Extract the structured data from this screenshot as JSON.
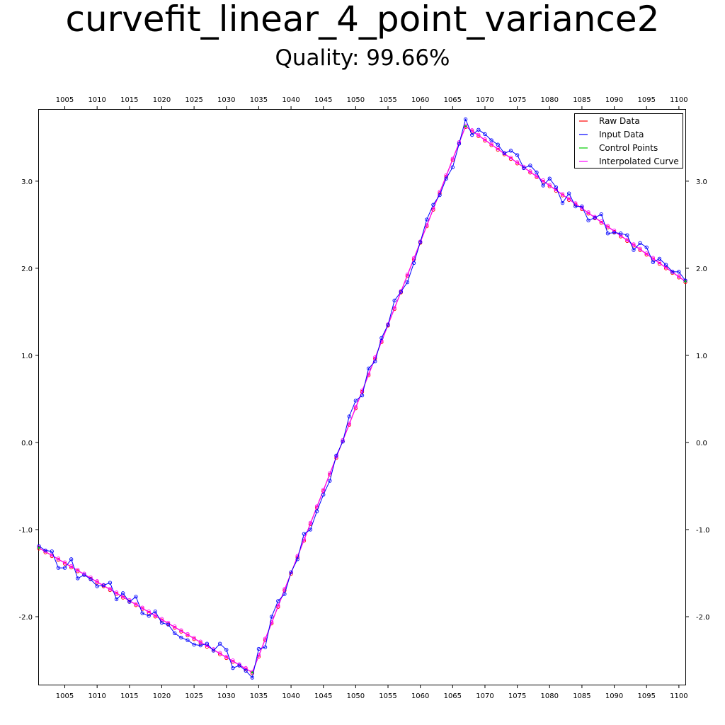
{
  "title": "curvefit_linear_4_point_variance2",
  "subtitle": "Quality: 99.66%",
  "chart_data": {
    "type": "line",
    "xlim": [
      1001,
      1101
    ],
    "ylim": [
      -2.78,
      3.82
    ],
    "x_ticks": [
      1005,
      1010,
      1015,
      1020,
      1025,
      1030,
      1035,
      1040,
      1045,
      1050,
      1055,
      1060,
      1065,
      1070,
      1075,
      1080,
      1085,
      1090,
      1095,
      1100
    ],
    "x_tick_labels": [
      "1005",
      "1010",
      "1015",
      "1020",
      "1025",
      "1030",
      "1035",
      "1040",
      "1045",
      "1050",
      "1055",
      "1060",
      "1065",
      "1070",
      "1075",
      "1080",
      "1085",
      "1090",
      "1095",
      "1100"
    ],
    "y_ticks": [
      -2.0,
      -1.0,
      0.0,
      1.0,
      2.0,
      3.0
    ],
    "y_tick_labels": [
      "-2.0",
      "-1.0",
      "0.0",
      "1.0",
      "2.0",
      "3.0"
    ],
    "grid": false,
    "legend_position": "top-right",
    "legend": [
      {
        "label": "Raw Data",
        "color": "#ff0000"
      },
      {
        "label": "Input Data",
        "color": "#0000ff"
      },
      {
        "label": "Control Points",
        "color": "#00cc00"
      },
      {
        "label": "Interpolated Curve",
        "color": "#ff00ff"
      }
    ],
    "raw_data": {
      "color": "#ff0000",
      "x": [
        1001,
        1034,
        1067,
        1101
      ],
      "y": [
        -1.21,
        -2.64,
        3.63,
        1.85
      ]
    },
    "input_data": {
      "color": "#0000ff",
      "x": [
        1001,
        1002,
        1003,
        1004,
        1005,
        1006,
        1007,
        1008,
        1009,
        1010,
        1011,
        1012,
        1013,
        1014,
        1015,
        1016,
        1017,
        1018,
        1019,
        1020,
        1021,
        1022,
        1023,
        1024,
        1025,
        1026,
        1027,
        1028,
        1029,
        1030,
        1031,
        1032,
        1033,
        1034,
        1035,
        1036,
        1037,
        1038,
        1039,
        1040,
        1041,
        1042,
        1043,
        1044,
        1045,
        1046,
        1047,
        1048,
        1049,
        1050,
        1051,
        1052,
        1053,
        1054,
        1055,
        1056,
        1057,
        1058,
        1059,
        1060,
        1061,
        1062,
        1063,
        1064,
        1065,
        1066,
        1067,
        1068,
        1069,
        1070,
        1071,
        1072,
        1073,
        1074,
        1075,
        1076,
        1077,
        1078,
        1079,
        1080,
        1081,
        1082,
        1083,
        1084,
        1085,
        1086,
        1087,
        1088,
        1089,
        1090,
        1091,
        1092,
        1093,
        1094,
        1095,
        1096,
        1097,
        1098,
        1099,
        1100,
        1101
      ],
      "y": [
        -1.19,
        -1.24,
        -1.25,
        -1.44,
        -1.44,
        -1.34,
        -1.56,
        -1.52,
        -1.57,
        -1.65,
        -1.64,
        -1.61,
        -1.8,
        -1.73,
        -1.83,
        -1.77,
        -1.96,
        -1.99,
        -1.94,
        -2.07,
        -2.09,
        -2.19,
        -2.24,
        -2.27,
        -2.32,
        -2.33,
        -2.31,
        -2.39,
        -2.31,
        -2.38,
        -2.59,
        -2.56,
        -2.62,
        -2.7,
        -2.37,
        -2.35,
        -2.0,
        -1.82,
        -1.74,
        -1.49,
        -1.34,
        -1.05,
        -1.0,
        -0.79,
        -0.6,
        -0.44,
        -0.15,
        0.01,
        0.3,
        0.48,
        0.54,
        0.85,
        0.93,
        1.2,
        1.35,
        1.63,
        1.73,
        1.84,
        2.06,
        2.3,
        2.56,
        2.73,
        2.84,
        3.03,
        3.16,
        3.43,
        3.71,
        3.53,
        3.59,
        3.54,
        3.47,
        3.42,
        3.32,
        3.35,
        3.3,
        3.15,
        3.18,
        3.1,
        2.95,
        3.03,
        2.93,
        2.75,
        2.86,
        2.71,
        2.71,
        2.55,
        2.58,
        2.62,
        2.4,
        2.41,
        2.4,
        2.38,
        2.21,
        2.29,
        2.24,
        2.07,
        2.11,
        2.04,
        1.96,
        1.96,
        1.86
      ]
    },
    "control_points": {
      "color": "#00cc00",
      "x": [
        1001,
        1034,
        1067,
        1101
      ],
      "y": [
        -1.21,
        -2.64,
        3.63,
        1.85
      ]
    },
    "interpolated_curve": {
      "color": "#ff00ff",
      "x": [
        1001,
        1034,
        1067,
        1101
      ],
      "y": [
        -1.21,
        -2.64,
        3.63,
        1.85
      ]
    }
  }
}
